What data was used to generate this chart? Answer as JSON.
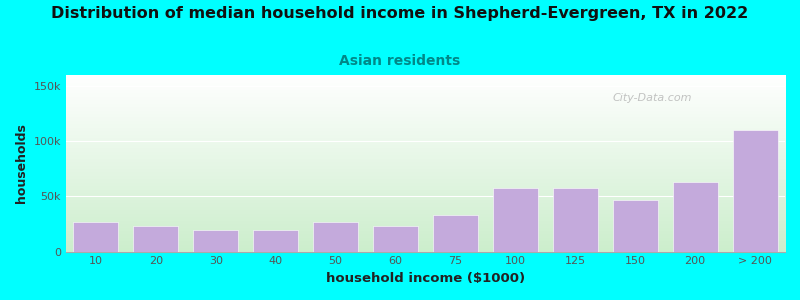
{
  "title": "Distribution of median household income in Shepherd-Evergreen, TX in 2022",
  "subtitle": "Asian residents",
  "xlabel": "household income ($1000)",
  "ylabel": "households",
  "background_color": "#00FFFF",
  "bar_color": "#C4AADC",
  "categories": [
    "10",
    "20",
    "30",
    "40",
    "50",
    "60",
    "75",
    "100",
    "125",
    "150",
    "200",
    "> 200"
  ],
  "values": [
    27000,
    23000,
    20000,
    20000,
    27000,
    23000,
    33000,
    58000,
    58000,
    47000,
    63000,
    110000
  ],
  "yticks": [
    0,
    50000,
    100000,
    150000
  ],
  "ytick_labels": [
    "0",
    "50k",
    "100k",
    "150k"
  ],
  "ylim": [
    0,
    160000
  ],
  "watermark": "City-Data.com",
  "title_fontsize": 11.5,
  "subtitle_fontsize": 10,
  "xlabel_fontsize": 9.5,
  "ylabel_fontsize": 9,
  "tick_fontsize": 8,
  "gradient_bottom_color": "#CCEECC",
  "gradient_top_color": "#FFFFFF"
}
